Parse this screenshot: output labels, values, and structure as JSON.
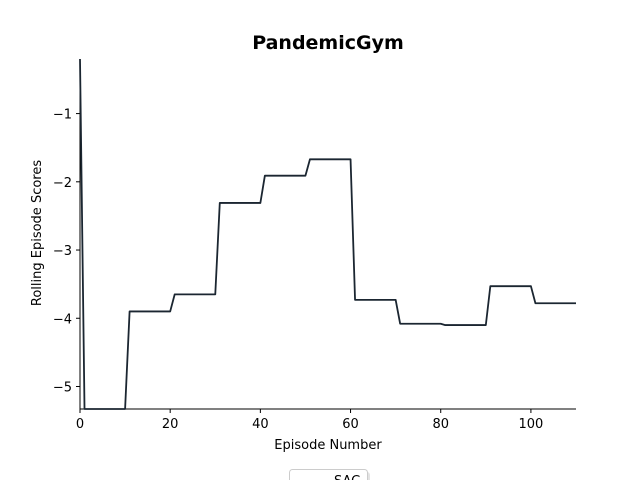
{
  "chart_data": {
    "type": "line",
    "title": "PandemicGym",
    "xlabel": "Episode Number",
    "ylabel": "Rolling Episode Scores",
    "xlim": [
      0,
      110
    ],
    "ylim": [
      -5.33,
      -0.2
    ],
    "xticks": [
      0,
      20,
      40,
      60,
      80,
      100
    ],
    "yticks": [
      -5,
      -4,
      -3,
      -2,
      -1
    ],
    "grid": false,
    "legend_position": "bottom-center",
    "series": [
      {
        "name": "SAC",
        "color": "#1b2631",
        "x": [
          0,
          1,
          10,
          11,
          20,
          21,
          30,
          31,
          40,
          41,
          50,
          51,
          60,
          61,
          70,
          71,
          80,
          81,
          90,
          91,
          100,
          101,
          110
        ],
        "y": [
          -0.2,
          -5.33,
          -5.33,
          -3.9,
          -3.9,
          -3.65,
          -3.65,
          -2.31,
          -2.31,
          -1.91,
          -1.91,
          -1.67,
          -1.67,
          -3.73,
          -3.73,
          -4.08,
          -4.08,
          -4.1,
          -4.1,
          -3.53,
          -3.53,
          -3.78,
          -3.78
        ]
      }
    ]
  }
}
